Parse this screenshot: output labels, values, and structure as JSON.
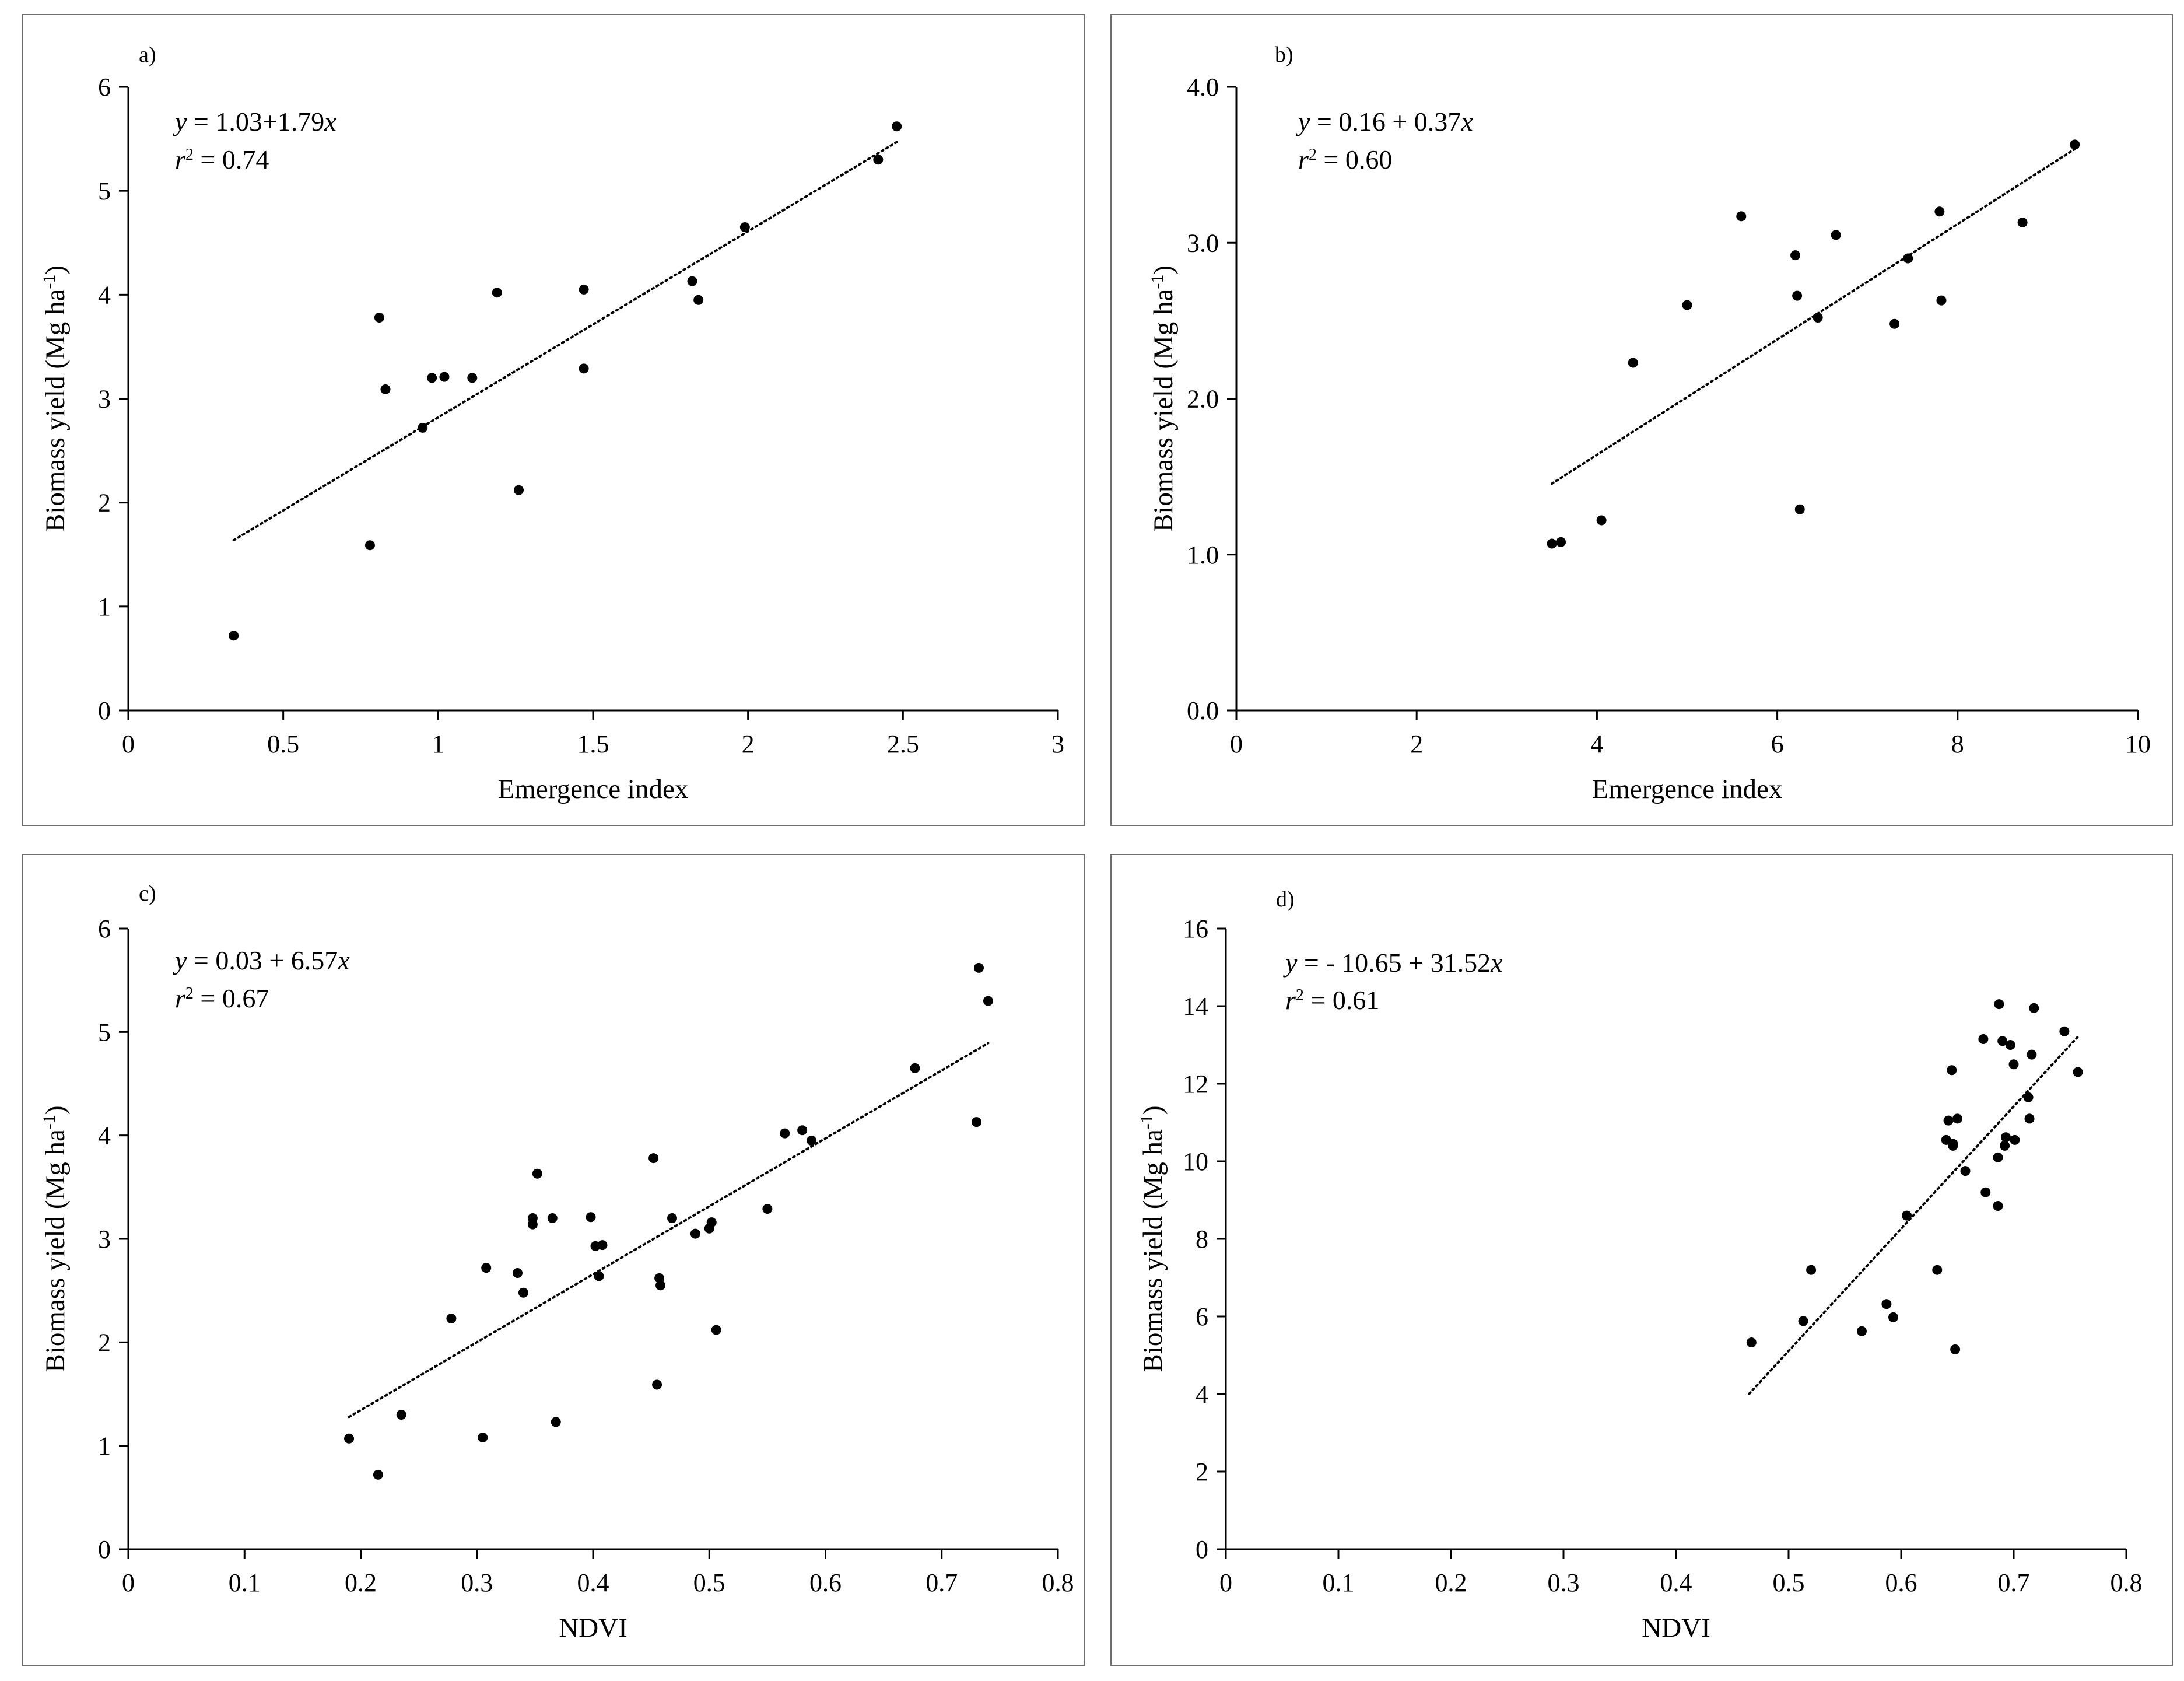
{
  "chart_data": [
    {
      "id": "a",
      "type": "scatter",
      "panel_label": "a)",
      "xlabel": "Emergence index",
      "ylabel": "Biomass yield (Mg ha",
      "ylabel_sup": "-1",
      "ylabel_close": ")",
      "xlim": [
        0,
        3
      ],
      "ylim": [
        0,
        6
      ],
      "xticks": [
        0,
        0.5,
        1,
        1.5,
        2,
        2.5,
        3
      ],
      "xtick_labels": [
        "0",
        "0.5",
        "1",
        "1.5",
        "2",
        "2.5",
        "3"
      ],
      "yticks": [
        0,
        1,
        2,
        3,
        4,
        5,
        6
      ],
      "ytick_labels": [
        "0",
        "1",
        "2",
        "3",
        "4",
        "5",
        "6"
      ],
      "equation": {
        "y": "y",
        "rest": " = 1.03+1.79",
        "x": "x"
      },
      "r2": {
        "r": "r",
        "sup": "2",
        "rest": " = 0.74"
      },
      "trendline": {
        "intercept": 1.03,
        "slope": 1.79,
        "x_range": [
          0.34,
          2.48
        ]
      },
      "points": [
        [
          0.34,
          0.72
        ],
        [
          0.78,
          1.59
        ],
        [
          0.81,
          3.78
        ],
        [
          0.83,
          3.09
        ],
        [
          0.95,
          2.72
        ],
        [
          0.98,
          3.2
        ],
        [
          1.02,
          3.21
        ],
        [
          1.11,
          3.2
        ],
        [
          1.19,
          4.02
        ],
        [
          1.26,
          2.12
        ],
        [
          1.47,
          4.05
        ],
        [
          1.47,
          3.29
        ],
        [
          1.82,
          4.13
        ],
        [
          1.84,
          3.95
        ],
        [
          1.99,
          4.65
        ],
        [
          2.42,
          5.3
        ],
        [
          2.48,
          5.62
        ]
      ]
    },
    {
      "id": "b",
      "type": "scatter",
      "panel_label": "b)",
      "xlabel": "Emergence index",
      "ylabel": "Biomass yield (Mg ha",
      "ylabel_sup": "-1",
      "ylabel_close": ")",
      "xlim": [
        0,
        10
      ],
      "ylim": [
        0,
        4
      ],
      "xticks": [
        0,
        2,
        4,
        6,
        8,
        10
      ],
      "xtick_labels": [
        "0",
        "2",
        "4",
        "6",
        "8",
        "10"
      ],
      "yticks": [
        0,
        1,
        2,
        3,
        4
      ],
      "ytick_labels": [
        "0.0",
        "1.0",
        "2.0",
        "3.0",
        "4.0"
      ],
      "equation": {
        "y": "y",
        "rest": " = 0.16 + 0.37",
        "x": "x"
      },
      "r2": {
        "r": "r",
        "sup": "2",
        "rest": " = 0.60"
      },
      "trendline": {
        "intercept": 0.16,
        "slope": 0.37,
        "x_range": [
          3.5,
          9.3
        ]
      },
      "points": [
        [
          3.5,
          1.07
        ],
        [
          3.6,
          1.08
        ],
        [
          4.05,
          1.22
        ],
        [
          4.4,
          2.23
        ],
        [
          5.0,
          2.6
        ],
        [
          5.6,
          3.17
        ],
        [
          6.2,
          2.92
        ],
        [
          6.22,
          2.66
        ],
        [
          6.25,
          1.29
        ],
        [
          6.45,
          2.52
        ],
        [
          6.65,
          3.05
        ],
        [
          7.3,
          2.48
        ],
        [
          7.45,
          2.9
        ],
        [
          7.8,
          3.2
        ],
        [
          7.82,
          2.63
        ],
        [
          8.72,
          3.13
        ],
        [
          9.3,
          3.63
        ]
      ]
    },
    {
      "id": "c",
      "type": "scatter",
      "panel_label": "c)",
      "xlabel": "NDVI",
      "ylabel": "Biomass yield (Mg ha",
      "ylabel_sup": "-1",
      "ylabel_close": ")",
      "xlim": [
        0,
        0.8
      ],
      "ylim": [
        0,
        6
      ],
      "xticks": [
        0,
        0.1,
        0.2,
        0.3,
        0.4,
        0.5,
        0.6,
        0.7,
        0.8
      ],
      "xtick_labels": [
        "0",
        "0.1",
        "0.2",
        "0.3",
        "0.4",
        "0.5",
        "0.6",
        "0.7",
        "0.8"
      ],
      "yticks": [
        0,
        1,
        2,
        3,
        4,
        5,
        6
      ],
      "ytick_labels": [
        "0",
        "1",
        "2",
        "3",
        "4",
        "5",
        "6"
      ],
      "equation": {
        "y": "y",
        "rest": " = 0.03 + 6.57",
        "x": "x"
      },
      "r2": {
        "r": "r",
        "sup": "2",
        "rest": " = 0.67"
      },
      "trendline": {
        "intercept": 0.03,
        "slope": 6.57,
        "x_range": [
          0.19,
          0.74
        ]
      },
      "points": [
        [
          0.19,
          1.07
        ],
        [
          0.215,
          0.72
        ],
        [
          0.235,
          1.3
        ],
        [
          0.278,
          2.23
        ],
        [
          0.305,
          1.08
        ],
        [
          0.308,
          2.72
        ],
        [
          0.335,
          2.67
        ],
        [
          0.34,
          2.48
        ],
        [
          0.348,
          3.2
        ],
        [
          0.348,
          3.14
        ],
        [
          0.352,
          3.63
        ],
        [
          0.365,
          3.2
        ],
        [
          0.368,
          1.23
        ],
        [
          0.398,
          3.21
        ],
        [
          0.402,
          2.93
        ],
        [
          0.405,
          2.64
        ],
        [
          0.408,
          2.94
        ],
        [
          0.452,
          3.78
        ],
        [
          0.455,
          1.59
        ],
        [
          0.457,
          2.62
        ],
        [
          0.458,
          2.55
        ],
        [
          0.468,
          3.2
        ],
        [
          0.488,
          3.05
        ],
        [
          0.5,
          3.1
        ],
        [
          0.502,
          3.16
        ],
        [
          0.506,
          2.12
        ],
        [
          0.55,
          3.29
        ],
        [
          0.565,
          4.02
        ],
        [
          0.58,
          4.05
        ],
        [
          0.588,
          3.95
        ],
        [
          0.677,
          4.65
        ],
        [
          0.73,
          4.13
        ],
        [
          0.732,
          5.62
        ],
        [
          0.74,
          5.3
        ]
      ]
    },
    {
      "id": "d",
      "type": "scatter",
      "panel_label": "d)",
      "xlabel": "NDVI",
      "ylabel": "Biomass yield (Mg ha",
      "ylabel_sup": "-1",
      "ylabel_close": ")",
      "xlim": [
        0,
        0.8
      ],
      "ylim": [
        0,
        16
      ],
      "xticks": [
        0,
        0.1,
        0.2,
        0.3,
        0.4,
        0.5,
        0.6,
        0.7,
        0.8
      ],
      "xtick_labels": [
        "0",
        "0.1",
        "0.2",
        "0.3",
        "0.4",
        "0.5",
        "0.6",
        "0.7",
        "0.8"
      ],
      "yticks": [
        0,
        2,
        4,
        6,
        8,
        10,
        12,
        14,
        16
      ],
      "ytick_labels": [
        "0",
        "2",
        "4",
        "6",
        "8",
        "10",
        "12",
        "14",
        "16"
      ],
      "equation": {
        "y": "y",
        "rest": " = - 10.65 + 31.52",
        "x": "x"
      },
      "r2": {
        "r": "r",
        "sup": "2",
        "rest": " = 0.61"
      },
      "trendline": {
        "intercept": -10.65,
        "slope": 31.52,
        "x_range": [
          0.465,
          0.757
        ]
      },
      "points": [
        [
          0.467,
          5.33
        ],
        [
          0.513,
          5.88
        ],
        [
          0.52,
          7.2
        ],
        [
          0.565,
          5.62
        ],
        [
          0.587,
          6.32
        ],
        [
          0.593,
          5.98
        ],
        [
          0.605,
          8.6
        ],
        [
          0.632,
          7.2
        ],
        [
          0.64,
          10.55
        ],
        [
          0.642,
          11.05
        ],
        [
          0.645,
          12.35
        ],
        [
          0.646,
          10.45
        ],
        [
          0.646,
          10.4
        ],
        [
          0.65,
          11.1
        ],
        [
          0.648,
          5.15
        ],
        [
          0.657,
          9.75
        ],
        [
          0.673,
          13.15
        ],
        [
          0.675,
          9.2
        ],
        [
          0.686,
          10.1
        ],
        [
          0.686,
          8.85
        ],
        [
          0.687,
          14.05
        ],
        [
          0.69,
          13.1
        ],
        [
          0.692,
          10.4
        ],
        [
          0.693,
          10.62
        ],
        [
          0.697,
          13.0
        ],
        [
          0.7,
          12.5
        ],
        [
          0.701,
          10.55
        ],
        [
          0.713,
          11.65
        ],
        [
          0.714,
          11.1
        ],
        [
          0.716,
          12.75
        ],
        [
          0.718,
          13.95
        ],
        [
          0.745,
          13.35
        ],
        [
          0.757,
          12.3
        ]
      ]
    }
  ]
}
